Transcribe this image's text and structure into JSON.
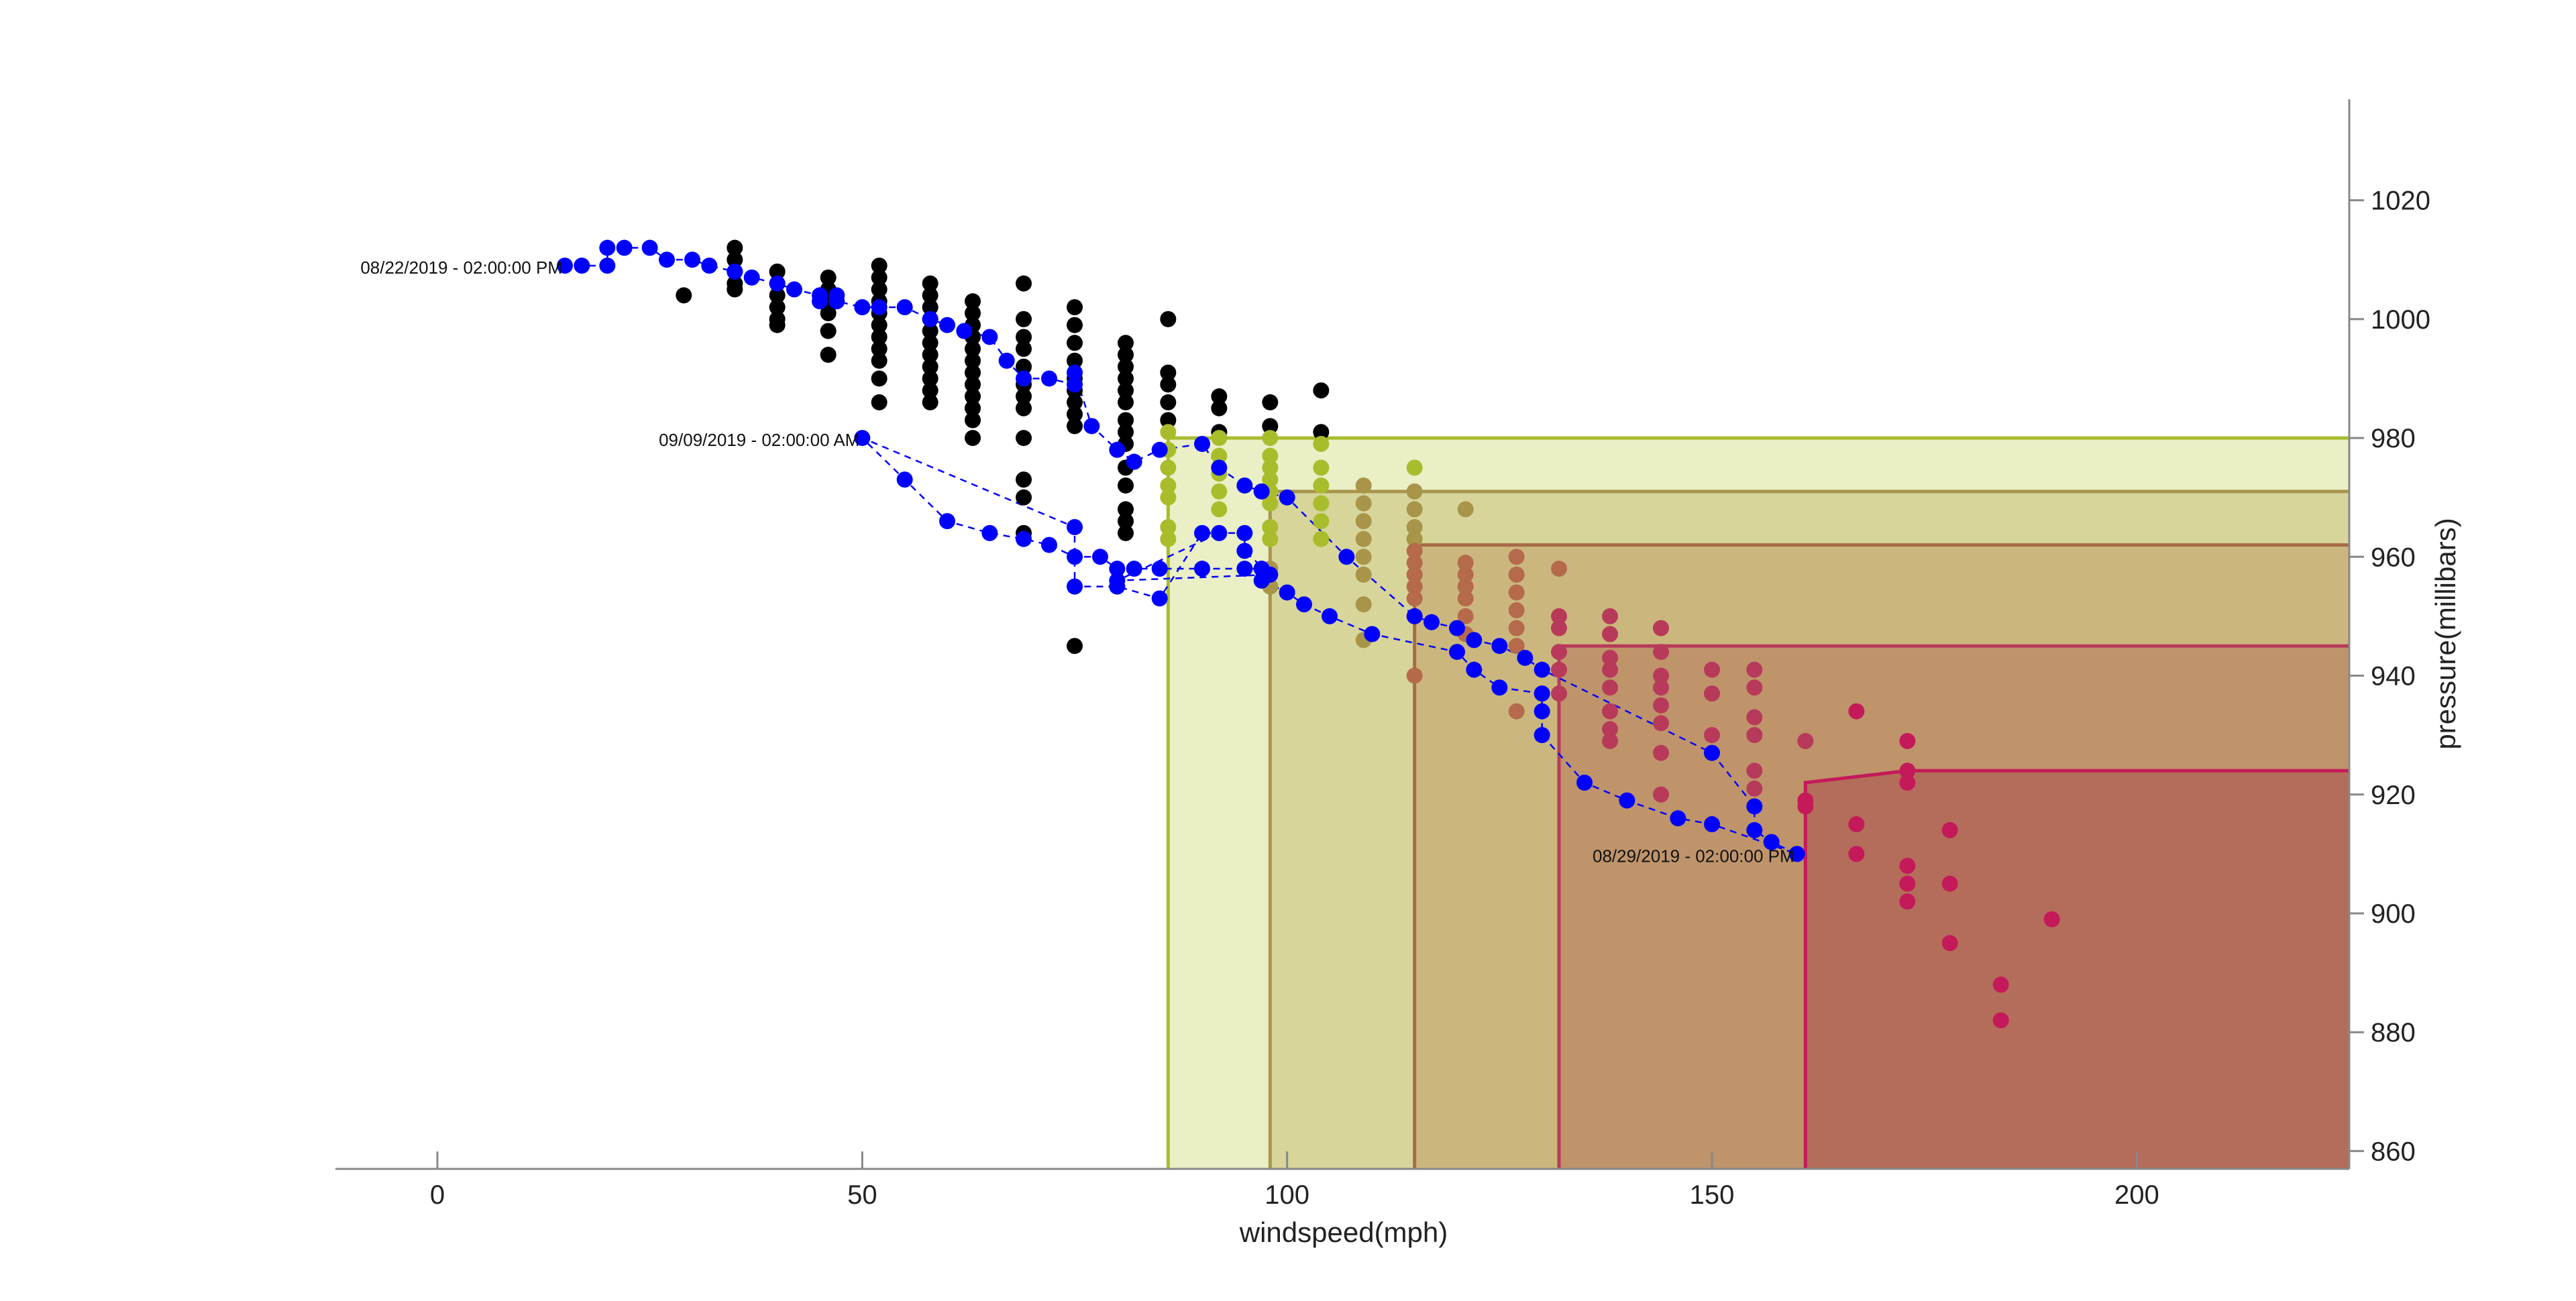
{
  "chart_data": {
    "type": "scatter",
    "title": "",
    "xlabel": "windspeed(mph)",
    "ylabel": "pressure(millibars)",
    "xlim": [
      -12,
      225
    ],
    "ylim": [
      857,
      1037
    ],
    "x_ticks": [
      0,
      50,
      100,
      150,
      200
    ],
    "y_ticks": [
      860,
      880,
      900,
      920,
      940,
      960,
      980,
      1000,
      1020
    ],
    "y_axis_position": "right",
    "grid": false,
    "legend": "none",
    "category_regions": [
      {
        "x_min": 86,
        "y_max": 980,
        "fill": "#c9d46a",
        "stroke": "#a9bd2c"
      },
      {
        "x_min": 98,
        "y_max": 971,
        "fill": "#b7ab55",
        "stroke": "#a8954a"
      },
      {
        "x_min": 115,
        "y_max": 962,
        "fill": "#b7864f",
        "stroke": "#a86a48"
      },
      {
        "x_min": 132,
        "y_max": 945,
        "fill": "#aa5d4e",
        "stroke": "#b83a5a"
      },
      {
        "x_min": 161,
        "y_max": 924,
        "fill": "#a3303f",
        "stroke": "#c41a5a",
        "outline": [
          [
            161,
            857
          ],
          [
            161,
            922
          ],
          [
            173,
            924
          ],
          [
            225,
            924
          ]
        ]
      }
    ],
    "series": [
      {
        "color": "#000000",
        "role": "historical observations",
        "points": [
          [
            29,
            1004
          ],
          [
            35,
            1012
          ],
          [
            35,
            1010
          ],
          [
            35,
            1008
          ],
          [
            35,
            1006
          ],
          [
            35,
            1005
          ],
          [
            40,
            1008
          ],
          [
            40,
            1006
          ],
          [
            40,
            1004
          ],
          [
            40,
            1002
          ],
          [
            40,
            1000
          ],
          [
            40,
            999
          ],
          [
            46,
            1007
          ],
          [
            46,
            1005
          ],
          [
            46,
            1003
          ],
          [
            46,
            1001
          ],
          [
            46,
            998
          ],
          [
            46,
            994
          ],
          [
            52,
            1009
          ],
          [
            52,
            1007
          ],
          [
            52,
            1005
          ],
          [
            52,
            1003
          ],
          [
            52,
            1001
          ],
          [
            52,
            999
          ],
          [
            52,
            997
          ],
          [
            52,
            995
          ],
          [
            52,
            993
          ],
          [
            52,
            990
          ],
          [
            52,
            986
          ],
          [
            58,
            1006
          ],
          [
            58,
            1004
          ],
          [
            58,
            1002
          ],
          [
            58,
            1000
          ],
          [
            58,
            998
          ],
          [
            58,
            996
          ],
          [
            58,
            994
          ],
          [
            58,
            992
          ],
          [
            58,
            990
          ],
          [
            58,
            988
          ],
          [
            58,
            986
          ],
          [
            63,
            1003
          ],
          [
            63,
            1001
          ],
          [
            63,
            999
          ],
          [
            63,
            997
          ],
          [
            63,
            995
          ],
          [
            63,
            993
          ],
          [
            63,
            991
          ],
          [
            63,
            989
          ],
          [
            63,
            987
          ],
          [
            63,
            985
          ],
          [
            63,
            983
          ],
          [
            63,
            980
          ],
          [
            69,
            1006
          ],
          [
            69,
            1000
          ],
          [
            69,
            997
          ],
          [
            69,
            995
          ],
          [
            69,
            992
          ],
          [
            69,
            989
          ],
          [
            69,
            987
          ],
          [
            69,
            985
          ],
          [
            69,
            980
          ],
          [
            69,
            973
          ],
          [
            69,
            970
          ],
          [
            69,
            964
          ],
          [
            75,
            1002
          ],
          [
            75,
            999
          ],
          [
            75,
            996
          ],
          [
            75,
            993
          ],
          [
            75,
            990
          ],
          [
            75,
            988
          ],
          [
            75,
            986
          ],
          [
            75,
            984
          ],
          [
            75,
            982
          ],
          [
            75,
            945
          ],
          [
            81,
            996
          ],
          [
            81,
            994
          ],
          [
            81,
            992
          ],
          [
            81,
            990
          ],
          [
            81,
            988
          ],
          [
            81,
            986
          ],
          [
            81,
            983
          ],
          [
            81,
            981
          ],
          [
            81,
            979
          ],
          [
            81,
            975
          ],
          [
            81,
            972
          ],
          [
            81,
            968
          ],
          [
            81,
            966
          ],
          [
            81,
            964
          ],
          [
            86,
            1000
          ],
          [
            86,
            991
          ],
          [
            86,
            989
          ],
          [
            86,
            986
          ],
          [
            86,
            983
          ],
          [
            92,
            987
          ],
          [
            92,
            985
          ],
          [
            92,
            981
          ],
          [
            98,
            986
          ],
          [
            98,
            982
          ],
          [
            104,
            988
          ],
          [
            104,
            981
          ]
        ]
      },
      {
        "color": "#a9bd2c",
        "role": "category 1 observations",
        "points": [
          [
            86,
            981
          ],
          [
            86,
            978
          ],
          [
            86,
            975
          ],
          [
            86,
            972
          ],
          [
            86,
            970
          ],
          [
            86,
            965
          ],
          [
            86,
            963
          ],
          [
            92,
            980
          ],
          [
            92,
            977
          ],
          [
            92,
            974
          ],
          [
            92,
            971
          ],
          [
            92,
            968
          ],
          [
            92,
            964
          ],
          [
            98,
            980
          ],
          [
            98,
            977
          ],
          [
            98,
            975
          ],
          [
            98,
            973
          ],
          [
            98,
            971
          ],
          [
            98,
            969
          ],
          [
            98,
            965
          ],
          [
            98,
            963
          ],
          [
            104,
            979
          ],
          [
            104,
            975
          ],
          [
            104,
            972
          ],
          [
            104,
            969
          ],
          [
            104,
            966
          ],
          [
            104,
            963
          ],
          [
            115,
            975
          ]
        ]
      },
      {
        "color": "#a8954a",
        "role": "category 2 observations",
        "points": [
          [
            98,
            958
          ],
          [
            98,
            955
          ],
          [
            109,
            972
          ],
          [
            109,
            969
          ],
          [
            109,
            966
          ],
          [
            109,
            963
          ],
          [
            109,
            960
          ],
          [
            109,
            957
          ],
          [
            109,
            952
          ],
          [
            109,
            946
          ],
          [
            115,
            971
          ],
          [
            115,
            968
          ],
          [
            115,
            965
          ],
          [
            115,
            963
          ],
          [
            121,
            968
          ]
        ]
      },
      {
        "color": "#b56a4c",
        "role": "category 3 observations",
        "points": [
          [
            115,
            961
          ],
          [
            115,
            959
          ],
          [
            115,
            957
          ],
          [
            115,
            955
          ],
          [
            115,
            953
          ],
          [
            115,
            950
          ],
          [
            115,
            940
          ],
          [
            121,
            959
          ],
          [
            121,
            957
          ],
          [
            121,
            955
          ],
          [
            121,
            953
          ],
          [
            121,
            950
          ],
          [
            121,
            947
          ],
          [
            127,
            960
          ],
          [
            127,
            957
          ],
          [
            127,
            954
          ],
          [
            127,
            951
          ],
          [
            127,
            948
          ],
          [
            127,
            945
          ],
          [
            127,
            934
          ],
          [
            132,
            958
          ]
        ]
      },
      {
        "color": "#b83a5a",
        "role": "category 4 observations",
        "points": [
          [
            132,
            950
          ],
          [
            132,
            948
          ],
          [
            132,
            944
          ],
          [
            132,
            941
          ],
          [
            132,
            937
          ],
          [
            138,
            950
          ],
          [
            138,
            947
          ],
          [
            138,
            943
          ],
          [
            138,
            941
          ],
          [
            138,
            938
          ],
          [
            138,
            934
          ],
          [
            138,
            931
          ],
          [
            138,
            929
          ],
          [
            144,
            948
          ],
          [
            144,
            944
          ],
          [
            144,
            940
          ],
          [
            144,
            938
          ],
          [
            144,
            935
          ],
          [
            144,
            932
          ],
          [
            144,
            927
          ],
          [
            144,
            920
          ],
          [
            150,
            941
          ],
          [
            150,
            937
          ],
          [
            150,
            930
          ],
          [
            155,
            941
          ],
          [
            155,
            938
          ],
          [
            155,
            933
          ],
          [
            155,
            930
          ],
          [
            155,
            924
          ],
          [
            155,
            921
          ],
          [
            161,
            929
          ]
        ]
      },
      {
        "color": "#c41a5a",
        "role": "category 5 observations",
        "points": [
          [
            161,
            919
          ],
          [
            161,
            918
          ],
          [
            167,
            934
          ],
          [
            167,
            915
          ],
          [
            167,
            910
          ],
          [
            173,
            929
          ],
          [
            173,
            924
          ],
          [
            173,
            922
          ],
          [
            173,
            908
          ],
          [
            173,
            905
          ],
          [
            173,
            902
          ],
          [
            178,
            914
          ],
          [
            178,
            905
          ],
          [
            178,
            895
          ],
          [
            184,
            888
          ],
          [
            184,
            882
          ],
          [
            190,
            899
          ]
        ]
      },
      {
        "color": "#0000ff",
        "role": "storm track",
        "dashed_line": true,
        "points": [
          [
            15,
            1009
          ],
          [
            17,
            1009
          ],
          [
            20,
            1009
          ],
          [
            20,
            1012
          ],
          [
            22,
            1012
          ],
          [
            25,
            1012
          ],
          [
            27,
            1010
          ],
          [
            30,
            1010
          ],
          [
            32,
            1009
          ],
          [
            35,
            1008
          ],
          [
            37,
            1007
          ],
          [
            40,
            1006
          ],
          [
            42,
            1005
          ],
          [
            45,
            1004
          ],
          [
            47,
            1004
          ],
          [
            45,
            1003
          ],
          [
            47,
            1003
          ],
          [
            50,
            1002
          ],
          [
            52,
            1002
          ],
          [
            55,
            1002
          ],
          [
            58,
            1000
          ],
          [
            60,
            999
          ],
          [
            62,
            998
          ],
          [
            65,
            997
          ],
          [
            67,
            993
          ],
          [
            69,
            990
          ],
          [
            72,
            990
          ],
          [
            75,
            989
          ],
          [
            75,
            991
          ],
          [
            77,
            982
          ],
          [
            80,
            978
          ],
          [
            82,
            976
          ],
          [
            85,
            978
          ],
          [
            90,
            979
          ],
          [
            92,
            975
          ],
          [
            95,
            972
          ],
          [
            97,
            971
          ],
          [
            100,
            970
          ],
          [
            107,
            960
          ],
          [
            115,
            950
          ],
          [
            117,
            949
          ],
          [
            120,
            948
          ],
          [
            122,
            946
          ],
          [
            125,
            945
          ],
          [
            128,
            943
          ],
          [
            130,
            941
          ],
          [
            150,
            927
          ],
          [
            155,
            918
          ],
          [
            155,
            914
          ],
          [
            157,
            912
          ],
          [
            160,
            910
          ],
          [
            150,
            915
          ],
          [
            146,
            916
          ],
          [
            140,
            919
          ],
          [
            135,
            922
          ],
          [
            130,
            930
          ],
          [
            130,
            934
          ],
          [
            130,
            937
          ],
          [
            125,
            938
          ],
          [
            122,
            941
          ],
          [
            120,
            944
          ],
          [
            110,
            947
          ],
          [
            105,
            950
          ],
          [
            102,
            952
          ],
          [
            100,
            954
          ],
          [
            97,
            956
          ],
          [
            97,
            958
          ],
          [
            95,
            958
          ],
          [
            90,
            958
          ],
          [
            85,
            958
          ],
          [
            82,
            958
          ],
          [
            80,
            958
          ],
          [
            78,
            960
          ],
          [
            75,
            960
          ],
          [
            72,
            962
          ],
          [
            69,
            963
          ],
          [
            65,
            964
          ],
          [
            60,
            966
          ],
          [
            55,
            973
          ],
          [
            50,
            980
          ],
          [
            75,
            965
          ],
          [
            75,
            955
          ],
          [
            80,
            955
          ],
          [
            85,
            953
          ],
          [
            90,
            964
          ],
          [
            95,
            964
          ],
          [
            95,
            961
          ],
          [
            98,
            957
          ],
          [
            80,
            956
          ],
          [
            92,
            964
          ]
        ]
      }
    ],
    "annotations": [
      {
        "text": "08/22/2019 - 02:00:00 PM",
        "x": 15,
        "y": 1009
      },
      {
        "text": "09/09/2019 - 02:00:00 AM",
        "x": 50,
        "y": 980
      },
      {
        "text": "08/29/2019 - 02:00:00 PM",
        "x": 160,
        "y": 910
      }
    ]
  }
}
